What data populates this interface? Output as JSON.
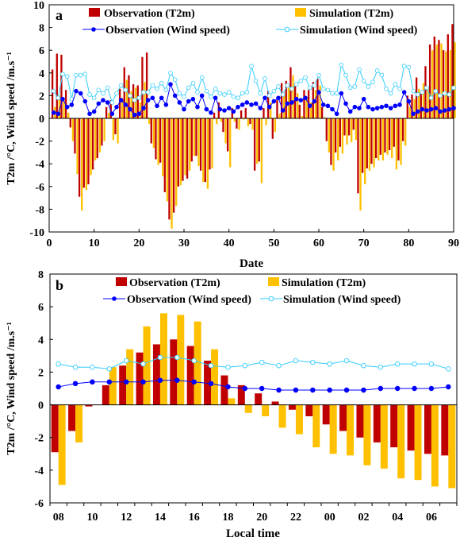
{
  "colors": {
    "obs_t2m": "#c00000",
    "sim_t2m": "#ffc000",
    "obs_wind": "#0000ff",
    "sim_wind": "#33ccff"
  },
  "chart_data": [
    {
      "type": "bar",
      "panel": "a",
      "xlabel": "Date",
      "ylabel": "T2m /°C, Wind speed /m.s⁻¹",
      "xlim": [
        0,
        90
      ],
      "ylim": [
        -10,
        10
      ],
      "xticks": [
        0,
        10,
        20,
        30,
        40,
        50,
        60,
        70,
        80,
        90
      ],
      "yticks": [
        -10,
        -8,
        -6,
        -4,
        -2,
        0,
        2,
        4,
        6,
        8,
        10
      ],
      "x": [
        1,
        2,
        3,
        4,
        5,
        6,
        7,
        8,
        9,
        10,
        11,
        12,
        13,
        14,
        15,
        16,
        17,
        18,
        19,
        20,
        21,
        22,
        23,
        24,
        25,
        26,
        27,
        28,
        29,
        30,
        31,
        32,
        33,
        34,
        35,
        36,
        37,
        38,
        39,
        40,
        41,
        42,
        43,
        44,
        45,
        46,
        47,
        48,
        49,
        50,
        51,
        52,
        53,
        54,
        55,
        56,
        57,
        58,
        59,
        60,
        61,
        62,
        63,
        64,
        65,
        66,
        67,
        68,
        69,
        70,
        71,
        72,
        73,
        74,
        75,
        76,
        77,
        78,
        79,
        80,
        81,
        82,
        83,
        84,
        85,
        86,
        87,
        88,
        89,
        90
      ],
      "series": [
        {
          "name": "Observation (T2m)",
          "kind": "bar",
          "values": [
            4.3,
            5.7,
            5.6,
            2.5,
            -0.8,
            -3.1,
            -6.9,
            -6.1,
            -5.8,
            -4.5,
            -3.5,
            -2.4,
            1.0,
            1.6,
            -1.4,
            2.6,
            4.5,
            3.8,
            3.0,
            2.9,
            5.4,
            5.8,
            -2.2,
            -3.6,
            -3.9,
            -6.5,
            -8.9,
            -8.3,
            -6.0,
            -5.5,
            -5.3,
            -3.8,
            -3.3,
            -4.6,
            -5.6,
            -4.5,
            0.5,
            1.4,
            -1.2,
            -2.9,
            0.9,
            -0.9,
            0.7,
            0.9,
            -0.5,
            -4.6,
            -3.8,
            0.9,
            2.4,
            -1.8,
            1.6,
            3.1,
            3.3,
            4.5,
            2.9,
            1.2,
            2.5,
            2.5,
            3.2,
            3.5,
            1.0,
            -2.0,
            -4.1,
            -3.0,
            -2.5,
            -1.5,
            -1.5,
            -1.0,
            -6.6,
            -4.8,
            -4.4,
            -4.0,
            -3.5,
            -3.2,
            -3.0,
            -2.8,
            -2.5,
            -3.7,
            -2.0,
            2.0,
            2.1,
            3.6,
            2.3,
            4.6,
            6.5,
            7.2,
            6.9,
            6.0,
            7.4,
            8.3
          ]
        },
        {
          "name": "Simulation (T2m)",
          "kind": "bar",
          "values": [
            1.0,
            2.0,
            1.6,
            0.5,
            -2.0,
            -4.9,
            -8.1,
            -6.3,
            -5.0,
            -3.7,
            -3.0,
            -2.0,
            0.5,
            -1.9,
            -2.2,
            1.8,
            3.4,
            2.4,
            2.7,
            1.4,
            3.2,
            -0.5,
            -2.6,
            -4.1,
            -5.1,
            -7.3,
            -9.7,
            -7.7,
            -5.9,
            -5.0,
            -4.6,
            -3.3,
            -4.2,
            -5.6,
            -6.2,
            -4.4,
            -0.5,
            -0.3,
            -2.2,
            -4.3,
            -0.3,
            -1.0,
            -0.1,
            -0.7,
            -1.0,
            -4.0,
            -5.7,
            -0.6,
            1.4,
            -1.2,
            0.4,
            2.0,
            2.7,
            3.8,
            2.2,
            0.2,
            1.9,
            1.4,
            2.5,
            2.9,
            0.1,
            -3.0,
            -4.6,
            -3.7,
            -3.1,
            -2.3,
            -2.1,
            -1.9,
            -8.1,
            -5.8,
            -4.6,
            -4.3,
            -3.7,
            -3.7,
            -3.2,
            -3.5,
            -4.5,
            -4.1,
            -2.4,
            1.0,
            1.7,
            2.6,
            3.1,
            2.8,
            6.0,
            6.5,
            6.6,
            5.9,
            6.0,
            6.7
          ]
        },
        {
          "name": "Observation (Wind speed)",
          "kind": "line",
          "values": [
            0.5,
            0.4,
            1.7,
            1.0,
            1.2,
            2.4,
            2.2,
            1.5,
            0.4,
            0.6,
            1.3,
            1.6,
            1.4,
            0.4,
            1.0,
            1.6,
            1.2,
            0.8,
            0.3,
            0.4,
            0.9,
            1.6,
            1.8,
            1.1,
            1.8,
            1.2,
            3.0,
            2.0,
            1.4,
            0.8,
            1.5,
            1.7,
            1.0,
            2.0,
            0.8,
            0.5,
            1.8,
            0.8,
            0.7,
            0.9,
            0.6,
            1.0,
            1.2,
            1.4,
            1.2,
            1.3,
            0.9,
            1.8,
            1.0,
            1.5,
            1.8,
            0.7,
            1.3,
            1.4,
            1.7,
            1.6,
            1.8,
            1.1,
            1.5,
            2.3,
            1.2,
            1.1,
            0.8,
            0.4,
            2.2,
            1.3,
            0.6,
            1.0,
            0.9,
            1.7,
            1.0,
            0.8,
            0.9,
            1.0,
            1.1,
            0.9,
            1.1,
            1.2,
            2.3,
            1.5,
            0.4,
            0.6,
            0.8,
            0.7,
            0.8,
            0.9,
            0.6,
            0.7,
            0.8,
            0.9
          ]
        },
        {
          "name": "Simulation (Wind speed)",
          "kind": "line",
          "values": [
            2.4,
            1.8,
            3.9,
            3.7,
            1.7,
            3.8,
            3.8,
            3.9,
            2.1,
            1.8,
            2.5,
            2.2,
            2.7,
            1.4,
            2.2,
            2.9,
            2.5,
            2.0,
            1.6,
            1.8,
            2.3,
            2.3,
            2.9,
            2.6,
            3.1,
            2.5,
            4.0,
            3.4,
            2.2,
            1.9,
            2.7,
            3.1,
            2.3,
            3.6,
            2.4,
            1.9,
            2.6,
            2.2,
            2.1,
            2.3,
            1.9,
            1.8,
            2.2,
            2.3,
            4.6,
            3.3,
            2.2,
            3.5,
            2.0,
            2.4,
            2.8,
            2.1,
            2.9,
            2.6,
            3.0,
            3.3,
            3.6,
            2.7,
            2.9,
            3.8,
            2.6,
            2.5,
            2.2,
            2.2,
            4.7,
            3.8,
            2.7,
            2.8,
            4.3,
            3.3,
            2.8,
            3.2,
            4.2,
            3.8,
            2.6,
            2.2,
            3.0,
            2.6,
            4.6,
            4.5,
            2.4,
            2.1,
            2.3,
            2.7,
            1.8,
            2.4,
            2.0,
            2.2,
            2.1,
            2.7
          ]
        }
      ]
    },
    {
      "type": "bar",
      "panel": "b",
      "xlabel": "Local time",
      "ylabel": "T2m /°C, Wind speed /m.s⁻¹",
      "ylim": [
        -6,
        8
      ],
      "yticks": [
        -6,
        -4,
        -2,
        0,
        2,
        4,
        6,
        8
      ],
      "categories": [
        "08",
        "09",
        "10",
        "11",
        "12",
        "13",
        "14",
        "15",
        "16",
        "17",
        "18",
        "19",
        "20",
        "21",
        "22",
        "23",
        "00",
        "01",
        "02",
        "03",
        "04",
        "05",
        "06",
        "07"
      ],
      "tick_labels": [
        "08",
        "10",
        "12",
        "14",
        "16",
        "18",
        "20",
        "22",
        "00",
        "02",
        "04",
        "06"
      ],
      "series": [
        {
          "name": "Observation (T2m)",
          "kind": "bar",
          "values": [
            -2.9,
            -1.6,
            -0.1,
            1.2,
            2.4,
            3.2,
            3.7,
            4.0,
            3.6,
            2.7,
            1.8,
            1.2,
            0.7,
            0.2,
            -0.3,
            -0.7,
            -1.2,
            -1.6,
            -2.0,
            -2.3,
            -2.6,
            -2.8,
            -3.0,
            -3.1
          ]
        },
        {
          "name": "Simulation (T2m)",
          "kind": "bar",
          "values": [
            -4.9,
            -2.3,
            0.0,
            2.3,
            3.4,
            4.8,
            5.6,
            5.5,
            5.1,
            3.4,
            0.4,
            -0.5,
            -0.7,
            -1.4,
            -1.8,
            -2.6,
            -3.0,
            -3.1,
            -3.7,
            -3.9,
            -4.5,
            -4.6,
            -5.0,
            -5.1
          ]
        },
        {
          "name": "Observation (Wind speed)",
          "kind": "line",
          "values": [
            1.1,
            1.3,
            1.4,
            1.4,
            1.4,
            1.4,
            1.5,
            1.5,
            1.4,
            1.3,
            1.1,
            1.0,
            1.0,
            0.9,
            0.9,
            0.9,
            0.9,
            0.9,
            0.9,
            1.0,
            1.0,
            1.0,
            1.0,
            1.1
          ]
        },
        {
          "name": "Simulation (Wind speed)",
          "kind": "line",
          "values": [
            2.5,
            2.3,
            2.3,
            2.2,
            2.7,
            2.5,
            2.9,
            2.9,
            2.7,
            2.4,
            2.3,
            2.4,
            2.6,
            2.4,
            2.7,
            2.6,
            2.5,
            2.7,
            2.4,
            2.3,
            2.5,
            2.5,
            2.5,
            2.2
          ]
        }
      ]
    }
  ]
}
